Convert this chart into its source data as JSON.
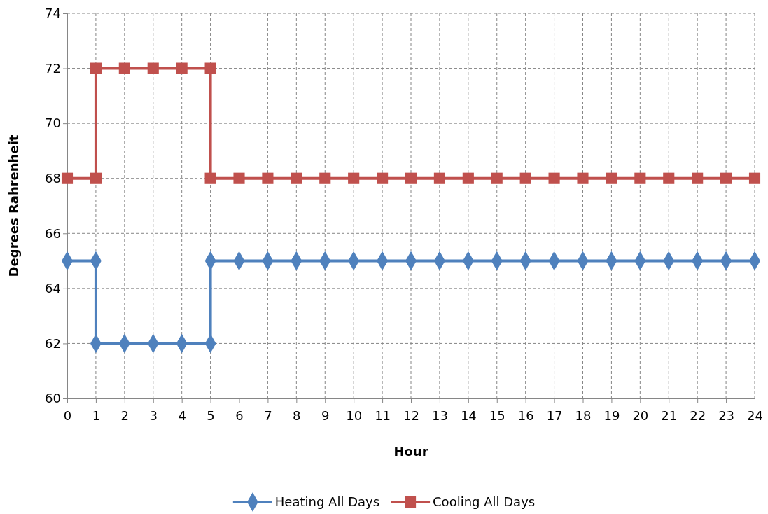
{
  "chart_data": {
    "type": "line",
    "xlabel": "Hour",
    "ylabel": "Degrees Rahrenheit",
    "xlim": [
      0,
      24
    ],
    "xticks": [
      0,
      1,
      2,
      3,
      4,
      5,
      6,
      7,
      8,
      9,
      10,
      11,
      12,
      13,
      14,
      15,
      16,
      17,
      18,
      19,
      20,
      21,
      22,
      23,
      24
    ],
    "ylim": [
      60,
      74
    ],
    "yticks": [
      60,
      62,
      64,
      66,
      68,
      70,
      72,
      74
    ],
    "grid": true,
    "legend": "bottom",
    "line_style": "solid",
    "series": [
      {
        "name": "Heating All Days",
        "color": "#4f81bd",
        "marker": "diamond",
        "x": [
          0,
          1,
          1,
          2,
          3,
          4,
          5,
          5,
          6,
          7,
          8,
          9,
          10,
          11,
          12,
          13,
          14,
          15,
          16,
          17,
          18,
          19,
          20,
          21,
          22,
          23,
          24
        ],
        "values": [
          65,
          65,
          62,
          62,
          62,
          62,
          62,
          65,
          65,
          65,
          65,
          65,
          65,
          65,
          65,
          65,
          65,
          65,
          65,
          65,
          65,
          65,
          65,
          65,
          65,
          65,
          65
        ]
      },
      {
        "name": "Cooling All Days",
        "color": "#c0504d",
        "marker": "square",
        "x": [
          0,
          1,
          1,
          2,
          3,
          4,
          5,
          5,
          6,
          7,
          8,
          9,
          10,
          11,
          12,
          13,
          14,
          15,
          16,
          17,
          18,
          19,
          20,
          21,
          22,
          23,
          24
        ],
        "values": [
          68,
          68,
          72,
          72,
          72,
          72,
          72,
          68,
          68,
          68,
          68,
          68,
          68,
          68,
          68,
          68,
          68,
          68,
          68,
          68,
          68,
          68,
          68,
          68,
          68,
          68,
          68
        ]
      }
    ]
  }
}
